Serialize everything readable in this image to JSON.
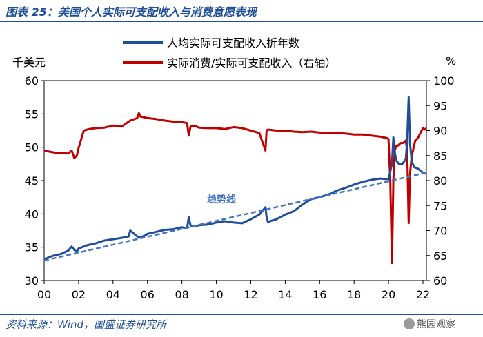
{
  "header": {
    "title": "图表 25：美国个人实际可支配收入与消费意愿表现"
  },
  "footer": {
    "source": "资料来源：Wind，国盛证券研究所",
    "watermark": "熊园观察",
    "watermark_icon": "wechat-icon"
  },
  "colors": {
    "income": "#1f4e99",
    "ratio": "#c00000",
    "trend": "#4472c4",
    "title": "#1f4e99"
  },
  "chart_data": {
    "type": "line",
    "left_unit": "千美元",
    "right_unit": "%",
    "x_tick_labels": [
      "00",
      "02",
      "04",
      "06",
      "08",
      "10",
      "12",
      "14",
      "16",
      "18",
      "20",
      "22"
    ],
    "x_ticks": [
      2000,
      2002,
      2004,
      2006,
      2008,
      2010,
      2012,
      2014,
      2016,
      2018,
      2020,
      2022
    ],
    "xlim": [
      2000,
      2022.2
    ],
    "ylim": [
      30,
      60
    ],
    "ylim_right": [
      60,
      100
    ],
    "y_ticks": [
      30,
      35,
      40,
      45,
      50,
      55,
      60
    ],
    "y_ticks_right": [
      60,
      65,
      70,
      75,
      80,
      85,
      90,
      95,
      100
    ],
    "legend_position": "top-center",
    "annotations": [
      {
        "text": "趋势线",
        "x": 2010.3,
        "y": 41.7
      }
    ],
    "series": [
      {
        "name": "人均实际可支配收入折年数",
        "axis": "left",
        "x": [
          2000,
          2000.5,
          2001,
          2001.4,
          2001.6,
          2001.75,
          2001.9,
          2002,
          2002.5,
          2003,
          2003.5,
          2004,
          2004.5,
          2004.9,
          2005,
          2005.5,
          2005.9,
          2006,
          2006.5,
          2007,
          2007.5,
          2008,
          2008.3,
          2008.4,
          2008.5,
          2008.7,
          2009,
          2009.5,
          2010,
          2010.5,
          2011,
          2011.5,
          2012,
          2012.5,
          2012.85,
          2012.92,
          2013,
          2013.5,
          2014,
          2014.5,
          2015,
          2015.5,
          2016,
          2016.5,
          2017,
          2017.5,
          2018,
          2018.5,
          2019,
          2019.5,
          2020,
          2020.2,
          2020.28,
          2020.35,
          2020.45,
          2020.6,
          2020.8,
          2021,
          2021.08,
          2021.17,
          2021.25,
          2021.35,
          2021.5,
          2021.7,
          2022,
          2022.2
        ],
        "values": [
          33.2,
          33.7,
          34.0,
          34.5,
          35.1,
          34.6,
          34.3,
          34.8,
          35.3,
          35.6,
          36.0,
          36.2,
          36.4,
          36.6,
          37.5,
          36.4,
          36.8,
          37.0,
          37.3,
          37.6,
          37.7,
          38.0,
          37.8,
          39.5,
          38.3,
          38.1,
          38.3,
          38.4,
          38.7,
          38.9,
          38.7,
          38.6,
          39.2,
          39.9,
          41.0,
          39.5,
          38.8,
          39.2,
          39.9,
          40.4,
          41.4,
          42.2,
          42.5,
          42.9,
          43.5,
          43.9,
          44.4,
          44.8,
          45.1,
          45.3,
          45.2,
          47.5,
          51.5,
          49.5,
          48.0,
          47.5,
          47.5,
          48.2,
          51.0,
          57.5,
          50.5,
          47.8,
          47.0,
          46.8,
          46.2,
          46.0
        ]
      },
      {
        "name": "实际消费/实际可支配收入（右轴）",
        "axis": "right",
        "x": [
          2000,
          2000.3,
          2000.6,
          2001,
          2001.4,
          2001.6,
          2001.75,
          2001.9,
          2002,
          2002.3,
          2002.6,
          2003,
          2003.5,
          2004,
          2004.5,
          2005,
          2005.4,
          2005.5,
          2005.6,
          2006,
          2006.5,
          2007,
          2007.5,
          2008,
          2008.3,
          2008.4,
          2008.5,
          2008.7,
          2009,
          2009.5,
          2010,
          2010.5,
          2011,
          2011.5,
          2012,
          2012.5,
          2012.85,
          2012.92,
          2013,
          2013.5,
          2014,
          2014.5,
          2015,
          2015.5,
          2016,
          2016.5,
          2017,
          2017.5,
          2018,
          2018.5,
          2019,
          2019.5,
          2019.9,
          2020,
          2020.1,
          2020.2,
          2020.28,
          2020.36,
          2020.45,
          2020.55,
          2020.7,
          2020.85,
          2021,
          2021.08,
          2021.17,
          2021.25,
          2021.35,
          2021.45,
          2021.55,
          2021.7,
          2021.85,
          2022,
          2022.1,
          2022.2
        ],
        "values": [
          86.0,
          85.8,
          85.6,
          85.5,
          85.4,
          86.0,
          84.5,
          85.0,
          86.5,
          90.0,
          90.3,
          90.5,
          90.6,
          91.0,
          90.8,
          92.0,
          92.5,
          93.5,
          92.8,
          92.5,
          92.3,
          92.0,
          91.8,
          91.7,
          91.5,
          89.0,
          90.8,
          91.0,
          90.6,
          90.5,
          90.5,
          90.3,
          90.7,
          90.5,
          90.0,
          89.5,
          86.0,
          90.0,
          90.2,
          90.0,
          90.0,
          89.8,
          89.7,
          89.8,
          89.6,
          89.5,
          89.5,
          89.4,
          89.2,
          89.2,
          89.0,
          88.8,
          88.5,
          88.3,
          80.0,
          63.5,
          80.0,
          86.0,
          87.0,
          87.0,
          87.5,
          87.5,
          88.0,
          86.0,
          71.5,
          81.5,
          85.0,
          86.5,
          88.0,
          88.5,
          89.5,
          90.5,
          90.2,
          90.5
        ]
      },
      {
        "name": "趋势线",
        "axis": "left",
        "x": [
          2000,
          2022.2
        ],
        "values": [
          33.0,
          46.2
        ]
      }
    ]
  }
}
